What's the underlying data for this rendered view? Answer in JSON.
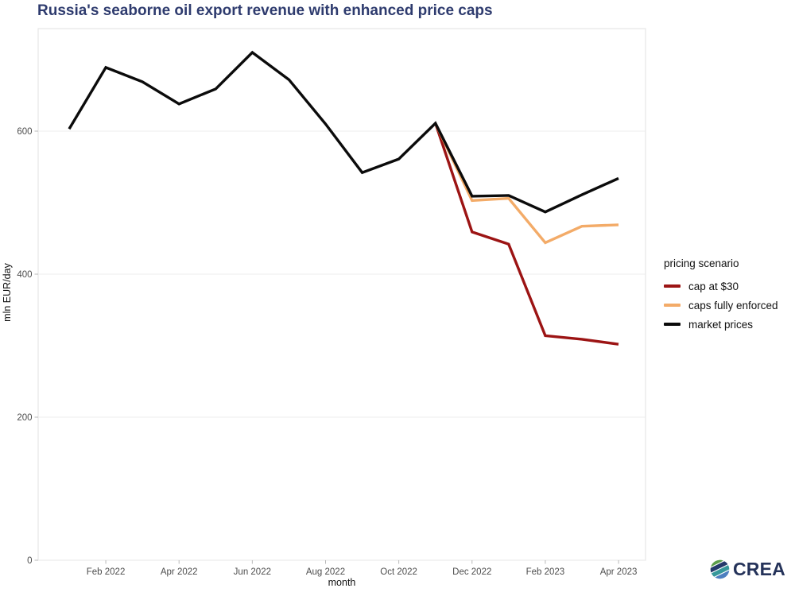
{
  "title": "Russia's seaborne oil export revenue with enhanced price caps",
  "branding": {
    "logo_text": "CREA"
  },
  "chart_data": {
    "type": "line",
    "title": "Russia's seaborne oil export revenue with enhanced price caps",
    "xlabel": "month",
    "ylabel": "mln EUR/day",
    "legend_title": "pricing scenario",
    "legend_position": "right",
    "grid": true,
    "ylim": [
      0,
      740
    ],
    "yticks": [
      0,
      200,
      400,
      600
    ],
    "x": [
      "Jan 2022",
      "Feb 2022",
      "Mar 2022",
      "Apr 2022",
      "May 2022",
      "Jun 2022",
      "Jul 2022",
      "Aug 2022",
      "Sep 2022",
      "Oct 2022",
      "Nov 2022",
      "Dec 2022",
      "Jan 2023",
      "Feb 2023",
      "Mar 2023",
      "Apr 2023"
    ],
    "xtick_labels": [
      "Feb 2022",
      "Apr 2022",
      "Jun 2022",
      "Aug 2022",
      "Oct 2022",
      "Dec 2022",
      "Feb 2023",
      "Apr 2023"
    ],
    "series": [
      {
        "name": "cap at $30",
        "color": "#9c1414",
        "values": [
          null,
          null,
          null,
          null,
          null,
          null,
          null,
          null,
          null,
          null,
          611,
          459,
          442,
          314,
          309,
          302
        ]
      },
      {
        "name": "caps fully enforced",
        "color": "#f3ab68",
        "values": [
          null,
          null,
          null,
          null,
          null,
          null,
          null,
          null,
          null,
          null,
          611,
          503,
          506,
          444,
          467,
          469
        ]
      },
      {
        "name": "market prices",
        "color": "#0b0b0b",
        "values": [
          603,
          689,
          669,
          638,
          659,
          710,
          672,
          610,
          542,
          561,
          611,
          509,
          510,
          487,
          511,
          534
        ]
      }
    ]
  }
}
